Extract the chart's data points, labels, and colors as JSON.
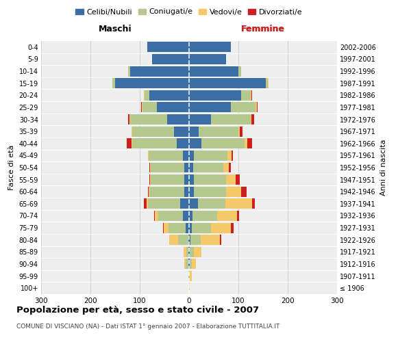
{
  "age_groups": [
    "100+",
    "95-99",
    "90-94",
    "85-89",
    "80-84",
    "75-79",
    "70-74",
    "65-69",
    "60-64",
    "55-59",
    "50-54",
    "45-49",
    "40-44",
    "35-39",
    "30-34",
    "25-29",
    "20-24",
    "15-19",
    "10-14",
    "5-9",
    "0-4"
  ],
  "birth_years": [
    "≤ 1906",
    "1907-1911",
    "1912-1916",
    "1917-1921",
    "1922-1926",
    "1927-1931",
    "1932-1936",
    "1937-1941",
    "1942-1946",
    "1947-1951",
    "1952-1956",
    "1957-1961",
    "1962-1966",
    "1967-1971",
    "1972-1976",
    "1977-1981",
    "1982-1986",
    "1987-1991",
    "1992-1996",
    "1997-2001",
    "2002-2006"
  ],
  "maschi": {
    "celibi": [
      0,
      0,
      2,
      1,
      2,
      7,
      12,
      18,
      10,
      10,
      10,
      12,
      25,
      30,
      45,
      65,
      80,
      150,
      120,
      75,
      85
    ],
    "coniugati": [
      0,
      1,
      5,
      5,
      20,
      35,
      50,
      65,
      70,
      68,
      68,
      70,
      90,
      85,
      75,
      30,
      10,
      5,
      3,
      0,
      0
    ],
    "vedovi": [
      0,
      1,
      3,
      5,
      18,
      10,
      8,
      3,
      2,
      1,
      1,
      1,
      1,
      1,
      1,
      1,
      1,
      0,
      0,
      0,
      0
    ],
    "divorziati": [
      0,
      0,
      0,
      0,
      0,
      1,
      1,
      5,
      1,
      1,
      1,
      1,
      10,
      1,
      2,
      1,
      1,
      0,
      0,
      0,
      0
    ]
  },
  "femmine": {
    "nubili": [
      0,
      0,
      1,
      2,
      3,
      5,
      7,
      18,
      10,
      10,
      8,
      10,
      25,
      20,
      45,
      85,
      105,
      155,
      100,
      75,
      85
    ],
    "coniugate": [
      0,
      2,
      5,
      8,
      20,
      40,
      50,
      55,
      65,
      65,
      62,
      68,
      88,
      80,
      80,
      50,
      20,
      5,
      5,
      0,
      0
    ],
    "vedove": [
      1,
      3,
      8,
      15,
      40,
      40,
      40,
      55,
      30,
      20,
      10,
      8,
      5,
      3,
      2,
      2,
      2,
      1,
      0,
      0,
      0
    ],
    "divorziate": [
      0,
      0,
      0,
      0,
      2,
      5,
      5,
      5,
      12,
      8,
      5,
      3,
      10,
      5,
      5,
      2,
      1,
      0,
      0,
      0,
      0
    ]
  },
  "color_celibi": "#3a6ea5",
  "color_coniugati": "#b5c98e",
  "color_vedovi": "#f5c96a",
  "color_divorziati": "#cc2020",
  "title": "Popolazione per età, sesso e stato civile - 2007",
  "subtitle": "COMUNE DI VISCIANO (NA) - Dati ISTAT 1° gennaio 2007 - Elaborazione TUTTITALIA.IT",
  "xlabel_left": "Maschi",
  "xlabel_right": "Femmine",
  "ylabel_left": "Fasce di età",
  "ylabel_right": "Anni di nascita",
  "xmax": 300,
  "bg_color": "#ffffff",
  "grid_color": "#cccccc",
  "legend_labels": [
    "Celibi/Nubili",
    "Coniugati/e",
    "Vedovi/e",
    "Divorziati/e"
  ]
}
